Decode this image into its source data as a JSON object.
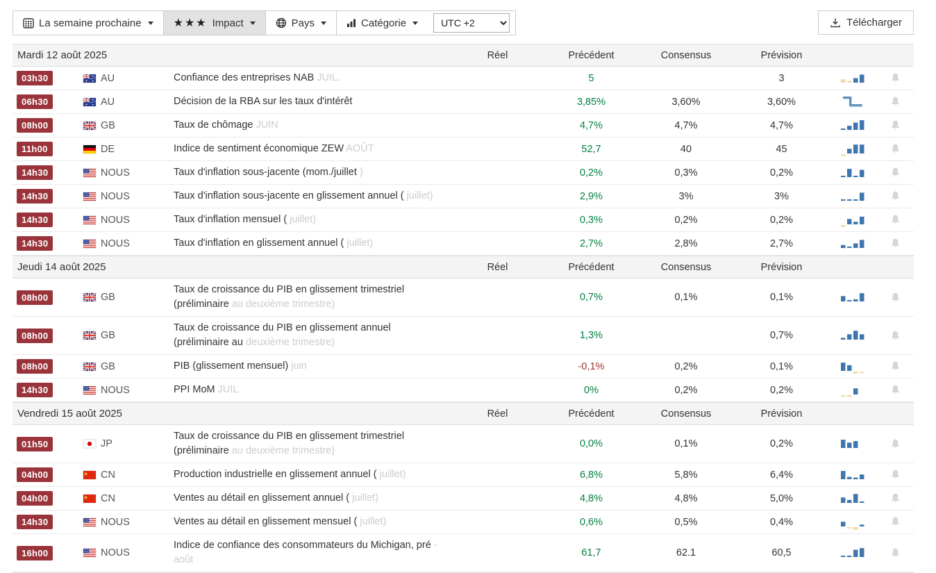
{
  "toolbar": {
    "week_button": "La semaine prochaine",
    "impact_stars": "★★★",
    "impact_button": "Impact",
    "pays_button": "Pays",
    "categorie_button": "Catégorie",
    "utc_value": "UTC +2",
    "download_button": "Télécharger"
  },
  "columns": {
    "reel": "Réel",
    "precedent": "Précédent",
    "consensus": "Consensus",
    "prevision": "Prévision"
  },
  "colors": {
    "badge_bg": "#9a333a",
    "positive_green": "#008040",
    "negative_red": "#9e352b",
    "spark_blue": "#3e76ad",
    "spark_tan": "#f0d9a5",
    "muted_gray": "#c9ccd0",
    "section_bg": "#f4f4f4"
  },
  "sections": [
    {
      "date": "Mardi 12 août 2025",
      "rows": [
        {
          "time": "03h30",
          "country": "au",
          "code": "AU",
          "l1": "Confiance des entreprises NAB",
          "l1g": " JUIL.",
          "l2": "",
          "l2g": "",
          "reel": "",
          "precedent": "5",
          "precedent_tone": "green",
          "consensus": "",
          "prevision": "3",
          "spark": {
            "type": "bars",
            "bars": [
              {
                "h": 28,
                "c": "t"
              },
              {
                "h": 14,
                "c": "t"
              },
              {
                "h": 38,
                "c": "b"
              },
              {
                "h": 68,
                "c": "b"
              }
            ]
          }
        },
        {
          "time": "06h30",
          "country": "au",
          "code": "AU",
          "l1": "Décision de la RBA sur les taux d'intérêt",
          "l1g": "",
          "l2": "",
          "l2g": "",
          "reel": "",
          "precedent": "3,85%",
          "precedent_tone": "green",
          "consensus": "3,60%",
          "prevision": "3,60%",
          "spark": {
            "type": "step"
          }
        },
        {
          "time": "08h00",
          "country": "gb",
          "code": "GB",
          "l1": "Taux de chômage",
          "l1g": " JUIN",
          "l2": "",
          "l2g": "",
          "reel": "",
          "precedent": "4,7%",
          "precedent_tone": "green",
          "consensus": "4,7%",
          "prevision": "4,7%",
          "spark": {
            "type": "bars",
            "bars": [
              {
                "h": 10,
                "c": "b"
              },
              {
                "h": 35,
                "c": "b"
              },
              {
                "h": 62,
                "c": "b"
              },
              {
                "h": 82,
                "c": "b"
              }
            ]
          }
        },
        {
          "time": "11h00",
          "country": "de",
          "code": "DE",
          "l1": "Indice de sentiment économique ZEW",
          "l1g": " AOÛT",
          "l2": "",
          "l2g": "",
          "reel": "",
          "precedent": "52,7",
          "precedent_tone": "green",
          "consensus": "40",
          "prevision": "45",
          "spark": {
            "type": "bars",
            "bars": [
              {
                "h": -14,
                "c": "t"
              },
              {
                "h": 40,
                "c": "b"
              },
              {
                "h": 75,
                "c": "b"
              },
              {
                "h": 75,
                "c": "b"
              }
            ]
          }
        },
        {
          "time": "14h30",
          "country": "us",
          "code": "NOUS",
          "l1": "Taux d'inflation sous-jacente (mom./juillet",
          "l1g": " )",
          "l2": "",
          "l2g": "",
          "reel": "",
          "precedent": "0,2%",
          "precedent_tone": "green",
          "consensus": "0,3%",
          "prevision": "0,2%",
          "spark": {
            "type": "bars",
            "bars": [
              {
                "h": 12,
                "c": "b"
              },
              {
                "h": 70,
                "c": "b"
              },
              {
                "h": 12,
                "c": "b"
              },
              {
                "h": 62,
                "c": "b"
              }
            ]
          }
        },
        {
          "time": "14h30",
          "country": "us",
          "code": "NOUS",
          "l1": "Taux d'inflation sous-jacente en glissement annuel (",
          "l1g": " juillet)",
          "l2": "",
          "l2g": "",
          "reel": "",
          "precedent": "2,9%",
          "precedent_tone": "green",
          "consensus": "3%",
          "prevision": "3%",
          "spark": {
            "type": "bars",
            "bars": [
              {
                "h": 10,
                "c": "b"
              },
              {
                "h": 10,
                "c": "b"
              },
              {
                "h": 12,
                "c": "b"
              },
              {
                "h": 68,
                "c": "b"
              }
            ]
          }
        },
        {
          "time": "14h30",
          "country": "us",
          "code": "NOUS",
          "l1": "Taux d'inflation mensuel (",
          "l1g": " juillet)",
          "l2": "",
          "l2g": "",
          "reel": "",
          "precedent": "0,3%",
          "precedent_tone": "green",
          "consensus": "0,2%",
          "prevision": "0,2%",
          "spark": {
            "type": "bars",
            "bars": [
              {
                "h": -15,
                "c": "t"
              },
              {
                "h": 45,
                "c": "b"
              },
              {
                "h": 22,
                "c": "b"
              },
              {
                "h": 65,
                "c": "b"
              }
            ]
          }
        },
        {
          "time": "14h30",
          "country": "us",
          "code": "NOUS",
          "l1": "Taux d'inflation en glissement annuel (",
          "l1g": " juillet)",
          "l2": "",
          "l2g": "",
          "reel": "",
          "precedent": "2,7%",
          "precedent_tone": "green",
          "consensus": "2,8%",
          "prevision": "2,7%",
          "spark": {
            "type": "bars",
            "bars": [
              {
                "h": 25,
                "c": "b"
              },
              {
                "h": 12,
                "c": "b"
              },
              {
                "h": 38,
                "c": "b"
              },
              {
                "h": 68,
                "c": "b"
              }
            ]
          }
        }
      ]
    },
    {
      "date": "Jeudi 14 août 2025",
      "rows": [
        {
          "time": "08h00",
          "country": "gb",
          "code": "GB",
          "l1": "Taux de croissance du PIB en glissement trimestriel",
          "l1g": "",
          "l2": "(préliminaire",
          "l2g": " au deuxième trimestre)",
          "reel": "",
          "precedent": "0,7%",
          "precedent_tone": "green",
          "consensus": "0,1%",
          "prevision": "0,1%",
          "spark": {
            "type": "bars",
            "bars": [
              {
                "h": 45,
                "c": "b"
              },
              {
                "h": 10,
                "c": "b"
              },
              {
                "h": 18,
                "c": "b"
              },
              {
                "h": 70,
                "c": "b"
              }
            ]
          }
        },
        {
          "time": "08h00",
          "country": "gb",
          "code": "GB",
          "l1": "Taux de croissance du PIB en glissement annuel",
          "l1g": "",
          "l2": "(préliminaire au",
          "l2g": " deuxième trimestre)",
          "reel": "",
          "precedent": "1,3%",
          "precedent_tone": "green",
          "consensus": "",
          "prevision": "0,7%",
          "spark": {
            "type": "bars",
            "bars": [
              {
                "h": 15,
                "c": "b"
              },
              {
                "h": 45,
                "c": "b"
              },
              {
                "h": 75,
                "c": "b"
              },
              {
                "h": 45,
                "c": "b"
              }
            ]
          }
        },
        {
          "time": "08h00",
          "country": "gb",
          "code": "GB",
          "l1": "PIB (glissement mensuel)",
          "l1g": " juin",
          "l2": "",
          "l2g": "",
          "reel": "",
          "precedent": "-0,1%",
          "precedent_tone": "red",
          "consensus": "0,2%",
          "prevision": "0,1%",
          "spark": {
            "type": "bars",
            "bars": [
              {
                "h": 70,
                "c": "b"
              },
              {
                "h": 48,
                "c": "b"
              },
              {
                "h": -16,
                "c": "t"
              },
              {
                "h": -8,
                "c": "t"
              }
            ]
          }
        },
        {
          "time": "14h30",
          "country": "us",
          "code": "NOUS",
          "l1": "PPI MoM",
          "l1g": " JUIL.",
          "l2": "",
          "l2g": "",
          "reel": "",
          "precedent": "0%",
          "precedent_tone": "green",
          "consensus": "0,2%",
          "prevision": "0,2%",
          "spark": {
            "type": "bars",
            "bars": [
              {
                "h": -8,
                "c": "t"
              },
              {
                "h": -14,
                "c": "t"
              },
              {
                "h": 52,
                "c": "b"
              }
            ]
          }
        }
      ]
    },
    {
      "date": "Vendredi 15 août 2025",
      "rows": [
        {
          "time": "01h50",
          "country": "jp",
          "code": "JP",
          "l1": "Taux de croissance du PIB en glissement trimestriel",
          "l1g": "",
          "l2": "(préliminaire",
          "l2g": " au deuxième trimestre)",
          "reel": "",
          "precedent": "0,0%",
          "precedent_tone": "green",
          "consensus": "0,1%",
          "prevision": "0,2%",
          "spark": {
            "type": "bars",
            "bars": [
              {
                "h": 70,
                "c": "b"
              },
              {
                "h": 45,
                "c": "b"
              },
              {
                "h": 58,
                "c": "b"
              }
            ]
          }
        },
        {
          "time": "04h00",
          "country": "cn",
          "code": "CN",
          "l1": "Production industrielle en glissement annuel (",
          "l1g": " juillet)",
          "l2": "",
          "l2g": "",
          "reel": "",
          "precedent": "6,8%",
          "precedent_tone": "green",
          "consensus": "5,8%",
          "prevision": "6,4%",
          "spark": {
            "type": "bars",
            "bars": [
              {
                "h": 70,
                "c": "b"
              },
              {
                "h": 20,
                "c": "b"
              },
              {
                "h": 14,
                "c": "b"
              },
              {
                "h": 40,
                "c": "b"
              }
            ]
          }
        },
        {
          "time": "04h00",
          "country": "cn",
          "code": "CN",
          "l1": "Ventes au détail en glissement annuel (",
          "l1g": " juillet)",
          "l2": "",
          "l2g": "",
          "reel": "",
          "precedent": "4,8%",
          "precedent_tone": "green",
          "consensus": "4,8%",
          "prevision": "5,0%",
          "spark": {
            "type": "bars",
            "bars": [
              {
                "h": 45,
                "c": "b"
              },
              {
                "h": 25,
                "c": "b"
              },
              {
                "h": 75,
                "c": "b"
              },
              {
                "h": 10,
                "c": "b"
              }
            ]
          }
        },
        {
          "time": "14h30",
          "country": "us",
          "code": "NOUS",
          "l1": "Ventes au détail en glissement mensuel (",
          "l1g": " juillet)",
          "l2": "",
          "l2g": "",
          "reel": "",
          "precedent": "0,6%",
          "precedent_tone": "green",
          "consensus": "0,5%",
          "prevision": "0,4%",
          "spark": {
            "type": "bars",
            "bars": [
              {
                "h": 40,
                "c": "b"
              },
              {
                "h": -10,
                "c": "t"
              },
              {
                "h": -22,
                "c": "t"
              },
              {
                "h": 15,
                "c": "b"
              }
            ]
          }
        },
        {
          "time": "16h00",
          "country": "us",
          "code": "NOUS",
          "l1": "Indice de confiance des consommateurs du Michigan, pré",
          "l1g": " -",
          "l2": "",
          "l2g": "août",
          "reel": "",
          "precedent": "61,7",
          "precedent_tone": "green",
          "consensus": "62.1",
          "prevision": "60,5",
          "spark": {
            "type": "bars",
            "bars": [
              {
                "h": 8,
                "c": "b"
              },
              {
                "h": 10,
                "c": "b"
              },
              {
                "h": 62,
                "c": "b"
              },
              {
                "h": 75,
                "c": "b"
              }
            ]
          }
        }
      ]
    }
  ]
}
